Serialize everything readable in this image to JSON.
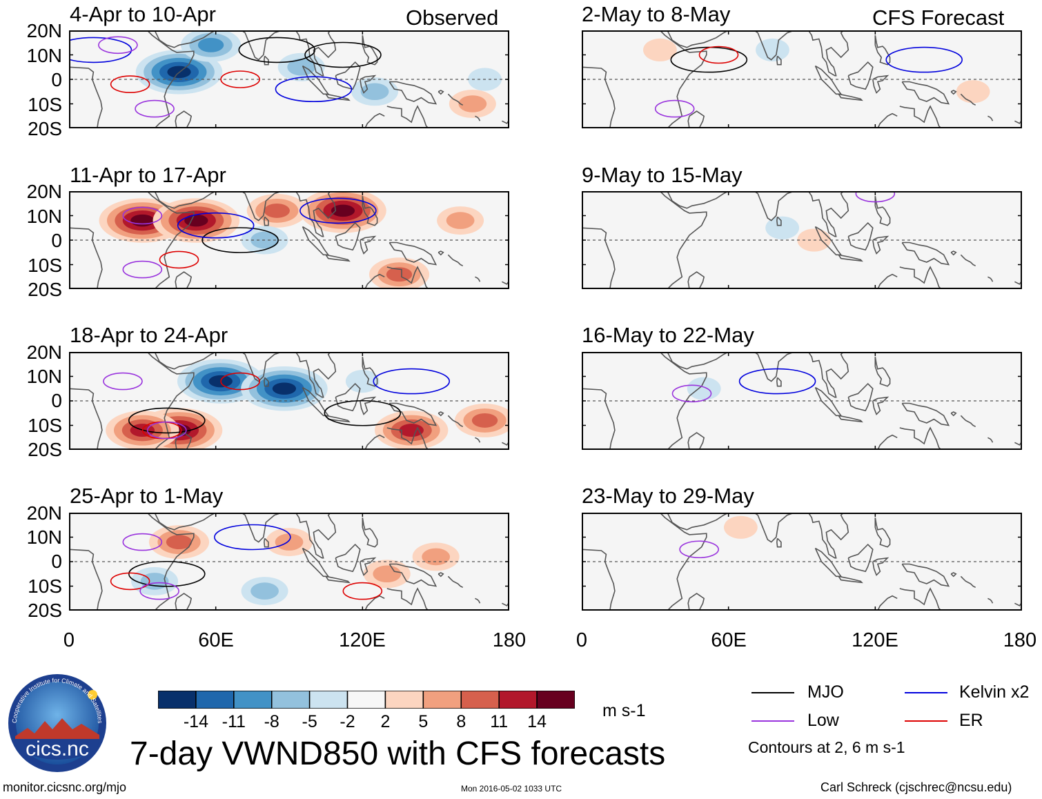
{
  "headers": {
    "observed": "Observed",
    "forecast": "CFS Forecast"
  },
  "panels": {
    "observed": [
      {
        "title": "4-Apr to 10-Apr"
      },
      {
        "title": "11-Apr to 17-Apr"
      },
      {
        "title": "18-Apr to 24-Apr"
      },
      {
        "title": "25-Apr to 1-May"
      }
    ],
    "forecast": [
      {
        "title": "2-May to 8-May"
      },
      {
        "title": "9-May to 15-May"
      },
      {
        "title": "16-May to 22-May"
      },
      {
        "title": "23-May to 29-May"
      }
    ]
  },
  "axes": {
    "lat_labels": [
      "20N",
      "10N",
      "0",
      "10S",
      "20S"
    ],
    "lon_labels": [
      "0",
      "60E",
      "120E",
      "180"
    ]
  },
  "colorbar": {
    "ticks": [
      "-14",
      "-11",
      "-8",
      "-5",
      "-2",
      "2",
      "5",
      "8",
      "11",
      "14"
    ],
    "colors": [
      "#08306b",
      "#1f67ac",
      "#4292c6",
      "#93c1dd",
      "#cce3f0",
      "#f7f7f7",
      "#fcd5c0",
      "#f1a07f",
      "#d6604d",
      "#b2182b",
      "#67001f"
    ],
    "units": "m s-1"
  },
  "legend": {
    "items": [
      {
        "label": "MJO",
        "color": "#000000"
      },
      {
        "label": "Kelvin x2",
        "color": "#0000dd"
      },
      {
        "label": "Low",
        "color": "#9933dd"
      },
      {
        "label": "ER",
        "color": "#dd0000"
      }
    ],
    "note": "Contours at 2, 6 m s-1"
  },
  "main_title": "7-day VWND850 with CFS forecasts",
  "logo_text": "cics.nc",
  "logo_ring_text": "Cooperative Institute for Climate and Satellites",
  "footer": {
    "url": "monitor.cicsnc.org/mjo",
    "timestamp": "Mon 2016-05-02 1033 UTC",
    "author": "Carl Schreck (cjschrec@ncsu.edu)"
  },
  "chart_data": {
    "type": "heatmap",
    "title": "7-day VWND850 with CFS forecasts",
    "variable": "850-hPa meridional wind anomaly",
    "units": "m s-1",
    "x_range": [
      0,
      180
    ],
    "y_range": [
      -20,
      20
    ],
    "contour_levels": [
      2,
      6
    ],
    "panels": [
      {
        "period": "4-Apr to 10-Apr",
        "source": "Observed",
        "features": [
          {
            "field": "vwnd",
            "lon": 45,
            "lat": 3,
            "value": -14
          },
          {
            "field": "vwnd",
            "lon": 58,
            "lat": 14,
            "value": -8
          },
          {
            "field": "vwnd",
            "lon": 95,
            "lat": 5,
            "value": -5
          },
          {
            "field": "vwnd",
            "lon": 125,
            "lat": -5,
            "value": -5
          },
          {
            "field": "vwnd",
            "lon": 170,
            "lat": 0,
            "value": -2
          },
          {
            "field": "vwnd",
            "lon": 165,
            "lat": -10,
            "value": 5
          },
          {
            "field": "MJO",
            "lon": 85,
            "lat": 12,
            "value": 2
          },
          {
            "field": "MJO",
            "lon": 112,
            "lat": 10,
            "value": 2
          },
          {
            "field": "Kelvin",
            "lon": 100,
            "lat": -4,
            "value": 2
          },
          {
            "field": "Kelvin",
            "lon": 10,
            "lat": 12,
            "value": 2
          },
          {
            "field": "ER",
            "lon": 70,
            "lat": 0,
            "value": 2
          },
          {
            "field": "ER",
            "lon": 25,
            "lat": -2,
            "value": 2
          },
          {
            "field": "Low",
            "lon": 35,
            "lat": -12,
            "value": 2
          },
          {
            "field": "Low",
            "lon": 20,
            "lat": 14,
            "value": 2
          }
        ]
      },
      {
        "period": "11-Apr to 17-Apr",
        "source": "Observed",
        "features": [
          {
            "field": "vwnd",
            "lon": 30,
            "lat": 8,
            "value": 14
          },
          {
            "field": "vwnd",
            "lon": 52,
            "lat": 8,
            "value": 14
          },
          {
            "field": "vwnd",
            "lon": 112,
            "lat": 12,
            "value": 14
          },
          {
            "field": "vwnd",
            "lon": 85,
            "lat": 12,
            "value": 8
          },
          {
            "field": "vwnd",
            "lon": 135,
            "lat": -14,
            "value": 8
          },
          {
            "field": "vwnd",
            "lon": 160,
            "lat": 8,
            "value": 5
          },
          {
            "field": "vwnd",
            "lon": 80,
            "lat": 0,
            "value": -5
          },
          {
            "field": "MJO",
            "lon": 70,
            "lat": 0,
            "value": 2
          },
          {
            "field": "Kelvin",
            "lon": 60,
            "lat": 6,
            "value": 2
          },
          {
            "field": "Kelvin",
            "lon": 110,
            "lat": 12,
            "value": 2
          },
          {
            "field": "ER",
            "lon": 45,
            "lat": -8,
            "value": 2
          },
          {
            "field": "Low",
            "lon": 30,
            "lat": 10,
            "value": 2
          },
          {
            "field": "Low",
            "lon": 30,
            "lat": -12,
            "value": 2
          }
        ]
      },
      {
        "period": "18-Apr to 24-Apr",
        "source": "Observed",
        "features": [
          {
            "field": "vwnd",
            "lon": 62,
            "lat": 8,
            "value": -14
          },
          {
            "field": "vwnd",
            "lon": 88,
            "lat": 5,
            "value": -14
          },
          {
            "field": "vwnd",
            "lon": 45,
            "lat": -12,
            "value": 14
          },
          {
            "field": "vwnd",
            "lon": 30,
            "lat": -12,
            "value": 11
          },
          {
            "field": "vwnd",
            "lon": 140,
            "lat": -12,
            "value": 11
          },
          {
            "field": "vwnd",
            "lon": 170,
            "lat": -8,
            "value": 8
          },
          {
            "field": "vwnd",
            "lon": 120,
            "lat": 8,
            "value": -2
          },
          {
            "field": "MJO",
            "lon": 120,
            "lat": -5,
            "value": 2
          },
          {
            "field": "MJO",
            "lon": 40,
            "lat": -8,
            "value": 2
          },
          {
            "field": "Kelvin",
            "lon": 140,
            "lat": 8,
            "value": 2
          },
          {
            "field": "ER",
            "lon": 70,
            "lat": 8,
            "value": 2
          },
          {
            "field": "ER",
            "lon": 38,
            "lat": -12,
            "value": 2
          },
          {
            "field": "Low",
            "lon": 40,
            "lat": -12,
            "value": 2
          },
          {
            "field": "Low",
            "lon": 22,
            "lat": 8,
            "value": 2
          }
        ]
      },
      {
        "period": "25-Apr to 1-May",
        "source": "Observed",
        "features": [
          {
            "field": "vwnd",
            "lon": 45,
            "lat": 8,
            "value": 8
          },
          {
            "field": "vwnd",
            "lon": 90,
            "lat": 8,
            "value": 5
          },
          {
            "field": "vwnd",
            "lon": 130,
            "lat": -5,
            "value": 5
          },
          {
            "field": "vwnd",
            "lon": 150,
            "lat": 2,
            "value": 5
          },
          {
            "field": "vwnd",
            "lon": 80,
            "lat": -12,
            "value": -5
          },
          {
            "field": "vwnd",
            "lon": 35,
            "lat": -8,
            "value": -5
          },
          {
            "field": "MJO",
            "lon": 40,
            "lat": -5,
            "value": 2
          },
          {
            "field": "Kelvin",
            "lon": 75,
            "lat": 10,
            "value": 2
          },
          {
            "field": "ER",
            "lon": 25,
            "lat": -8,
            "value": 2
          },
          {
            "field": "ER",
            "lon": 120,
            "lat": -12,
            "value": 2
          },
          {
            "field": "Low",
            "lon": 30,
            "lat": 8,
            "value": 2
          },
          {
            "field": "Low",
            "lon": 37,
            "lat": -12,
            "value": 2
          }
        ]
      },
      {
        "period": "2-May to 8-May",
        "source": "CFS Forecast",
        "features": [
          {
            "field": "vwnd",
            "lon": 32,
            "lat": 12,
            "value": 2
          },
          {
            "field": "vwnd",
            "lon": 78,
            "lat": 12,
            "value": -2
          },
          {
            "field": "vwnd",
            "lon": 160,
            "lat": -5,
            "value": 2
          },
          {
            "field": "MJO",
            "lon": 52,
            "lat": 8,
            "value": 2
          },
          {
            "field": "Kelvin",
            "lon": 140,
            "lat": 8,
            "value": 2
          },
          {
            "field": "ER",
            "lon": 56,
            "lat": 10,
            "value": 2
          },
          {
            "field": "Low",
            "lon": 38,
            "lat": -12,
            "value": 2
          }
        ]
      },
      {
        "period": "9-May to 15-May",
        "source": "CFS Forecast",
        "features": [
          {
            "field": "vwnd",
            "lon": 82,
            "lat": 5,
            "value": -2
          },
          {
            "field": "vwnd",
            "lon": 95,
            "lat": 0,
            "value": 2
          },
          {
            "field": "Low",
            "lon": 120,
            "lat": 19,
            "value": 2
          }
        ]
      },
      {
        "period": "16-May to 22-May",
        "source": "CFS Forecast",
        "features": [
          {
            "field": "vwnd",
            "lon": 50,
            "lat": 5,
            "value": -2
          },
          {
            "field": "Kelvin",
            "lon": 80,
            "lat": 8,
            "value": 2
          },
          {
            "field": "Low",
            "lon": 45,
            "lat": 3,
            "value": 2
          }
        ]
      },
      {
        "period": "23-May to 29-May",
        "source": "CFS Forecast",
        "features": [
          {
            "field": "vwnd",
            "lon": 65,
            "lat": 14,
            "value": 2
          },
          {
            "field": "Low",
            "lon": 48,
            "lat": 5,
            "value": 2
          }
        ]
      }
    ]
  }
}
